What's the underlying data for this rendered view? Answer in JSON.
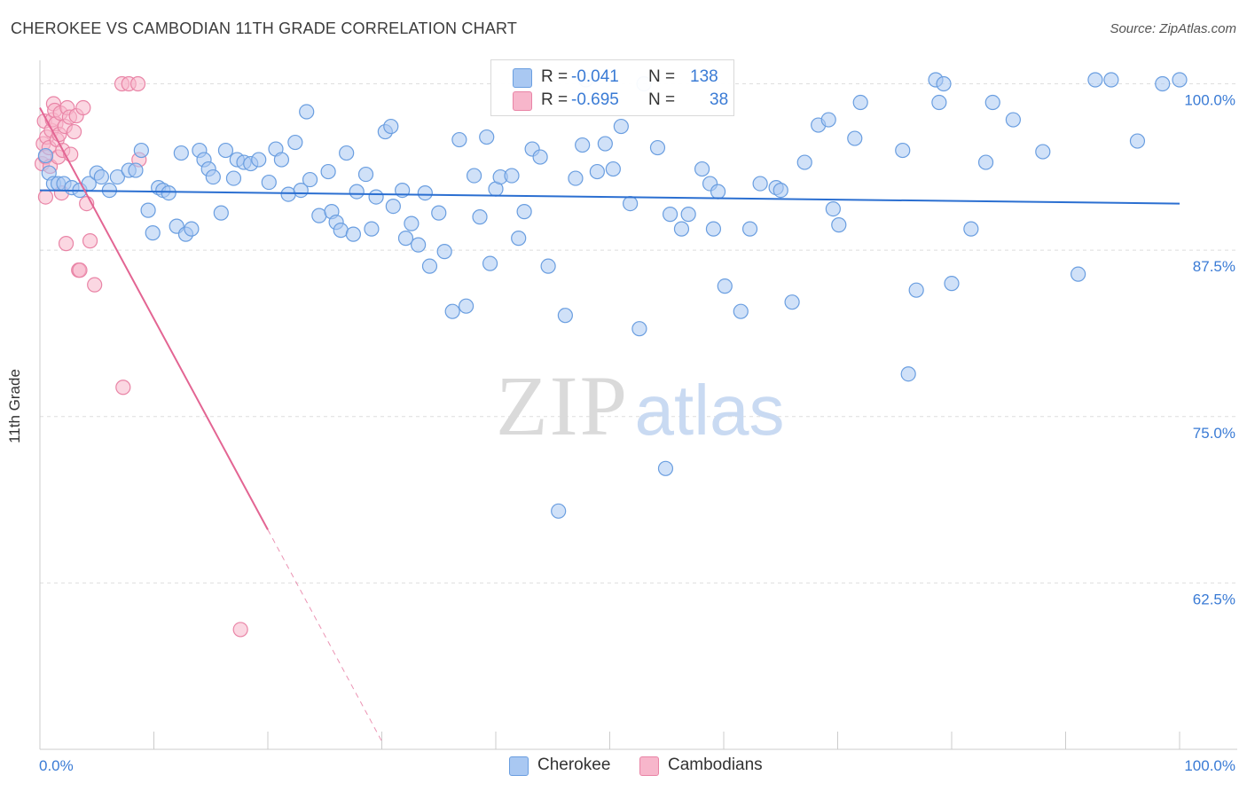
{
  "title": "CHEROKEE VS CAMBODIAN 11TH GRADE CORRELATION CHART",
  "source": "Source: ZipAtlas.com",
  "watermark": {
    "zip": "ZIP",
    "atlas": "atlas"
  },
  "legend": {
    "rows": [
      {
        "r_label": "R =",
        "r_value": "-0.041",
        "n_label": "N =",
        "n_value": "138",
        "color": "#a9c8f2",
        "border": "#6a9ee0"
      },
      {
        "r_label": "R =",
        "r_value": "-0.695",
        "n_label": "N =",
        "n_value": "38",
        "color": "#f7b6cb",
        "border": "#e984a6"
      }
    ]
  },
  "bottom_legend": [
    {
      "label": "Cherokee",
      "color": "#a9c8f2",
      "border": "#6a9ee0"
    },
    {
      "label": "Cambodians",
      "color": "#f7b6cb",
      "border": "#e984a6"
    }
  ],
  "chart_data": {
    "type": "scatter",
    "title": "CHEROKEE VS CAMBODIAN 11TH GRADE CORRELATION CHART",
    "xlabel": "",
    "ylabel": "11th Grade",
    "xlim": [
      0,
      100
    ],
    "ylim": [
      50,
      101.5
    ],
    "x_tick_labels": [
      "0.0%",
      "100.0%"
    ],
    "y_ticks": [
      62.5,
      75.0,
      87.5,
      100.0
    ],
    "y_tick_labels": [
      "62.5%",
      "75.0%",
      "87.5%",
      "100.0%"
    ],
    "grid": true,
    "legend_position": "top-center",
    "series": [
      {
        "name": "Cherokee",
        "color": "#6a9ee0",
        "fill": "#a9c8f2",
        "trend": {
          "x": [
            0,
            100
          ],
          "y": [
            92.0,
            91.0
          ],
          "color": "#2b6fd1"
        },
        "points": [
          [
            0.5,
            94.6
          ],
          [
            0.8,
            93.3
          ],
          [
            1.2,
            92.5
          ],
          [
            1.6,
            92.5
          ],
          [
            2.1,
            92.5
          ],
          [
            2.8,
            92.2
          ],
          [
            3.5,
            92.0
          ],
          [
            4.3,
            92.5
          ],
          [
            5.0,
            93.3
          ],
          [
            5.4,
            93.0
          ],
          [
            6.1,
            92.0
          ],
          [
            6.8,
            93.0
          ],
          [
            7.8,
            93.5
          ],
          [
            8.4,
            93.5
          ],
          [
            8.9,
            95.0
          ],
          [
            9.5,
            90.5
          ],
          [
            9.9,
            88.8
          ],
          [
            10.4,
            92.2
          ],
          [
            10.8,
            92.0
          ],
          [
            11.3,
            91.8
          ],
          [
            12.0,
            89.3
          ],
          [
            12.4,
            94.8
          ],
          [
            12.8,
            88.7
          ],
          [
            13.3,
            89.1
          ],
          [
            14.0,
            95.0
          ],
          [
            14.4,
            94.3
          ],
          [
            14.8,
            93.6
          ],
          [
            15.2,
            93.0
          ],
          [
            15.9,
            90.3
          ],
          [
            16.3,
            95.0
          ],
          [
            17.0,
            92.9
          ],
          [
            17.3,
            94.3
          ],
          [
            17.9,
            94.1
          ],
          [
            18.5,
            94.0
          ],
          [
            19.2,
            94.3
          ],
          [
            20.1,
            92.6
          ],
          [
            20.7,
            95.1
          ],
          [
            21.2,
            94.3
          ],
          [
            21.8,
            91.7
          ],
          [
            22.4,
            95.6
          ],
          [
            22.9,
            92.0
          ],
          [
            23.4,
            97.9
          ],
          [
            23.7,
            92.8
          ],
          [
            24.5,
            90.1
          ],
          [
            25.3,
            93.4
          ],
          [
            25.6,
            90.4
          ],
          [
            26.0,
            89.6
          ],
          [
            26.4,
            89.0
          ],
          [
            26.9,
            94.8
          ],
          [
            27.5,
            88.7
          ],
          [
            27.8,
            91.9
          ],
          [
            28.6,
            93.2
          ],
          [
            29.1,
            89.1
          ],
          [
            29.5,
            91.5
          ],
          [
            30.3,
            96.4
          ],
          [
            30.8,
            96.8
          ],
          [
            31.0,
            90.8
          ],
          [
            31.8,
            92.0
          ],
          [
            32.1,
            88.4
          ],
          [
            32.6,
            89.5
          ],
          [
            33.2,
            87.9
          ],
          [
            33.8,
            91.8
          ],
          [
            34.2,
            86.3
          ],
          [
            35.0,
            90.3
          ],
          [
            35.5,
            87.4
          ],
          [
            36.2,
            82.9
          ],
          [
            36.8,
            95.8
          ],
          [
            37.4,
            83.3
          ],
          [
            38.1,
            93.1
          ],
          [
            38.6,
            90.0
          ],
          [
            39.2,
            96.0
          ],
          [
            39.5,
            86.5
          ],
          [
            40.0,
            92.1
          ],
          [
            40.4,
            93.0
          ],
          [
            41.4,
            93.1
          ],
          [
            42.0,
            88.4
          ],
          [
            42.5,
            90.4
          ],
          [
            43.2,
            95.1
          ],
          [
            43.9,
            94.5
          ],
          [
            44.6,
            86.3
          ],
          [
            45.5,
            67.9
          ],
          [
            46.1,
            82.6
          ],
          [
            47.0,
            92.9
          ],
          [
            47.6,
            95.4
          ],
          [
            47.9,
            100.3
          ],
          [
            48.9,
            93.4
          ],
          [
            49.6,
            95.5
          ],
          [
            50.3,
            93.6
          ],
          [
            51.0,
            96.8
          ],
          [
            51.8,
            91.0
          ],
          [
            52.6,
            81.6
          ],
          [
            53.0,
            100.0
          ],
          [
            54.2,
            95.2
          ],
          [
            54.9,
            71.1
          ],
          [
            55.3,
            90.2
          ],
          [
            56.3,
            89.1
          ],
          [
            56.9,
            90.2
          ],
          [
            58.1,
            93.6
          ],
          [
            58.8,
            92.5
          ],
          [
            59.1,
            89.1
          ],
          [
            59.5,
            91.9
          ],
          [
            60.1,
            84.8
          ],
          [
            61.5,
            82.9
          ],
          [
            62.3,
            89.1
          ],
          [
            63.2,
            92.5
          ],
          [
            64.6,
            92.2
          ],
          [
            65.0,
            92.0
          ],
          [
            66.0,
            83.6
          ],
          [
            67.1,
            94.1
          ],
          [
            68.3,
            96.9
          ],
          [
            69.2,
            97.3
          ],
          [
            69.6,
            90.6
          ],
          [
            70.1,
            89.4
          ],
          [
            71.5,
            95.9
          ],
          [
            72.0,
            98.6
          ],
          [
            75.7,
            95.0
          ],
          [
            76.2,
            78.2
          ],
          [
            76.9,
            84.5
          ],
          [
            78.6,
            100.3
          ],
          [
            78.9,
            98.6
          ],
          [
            79.3,
            100.0
          ],
          [
            80.0,
            85.0
          ],
          [
            81.7,
            89.1
          ],
          [
            83.0,
            94.1
          ],
          [
            83.6,
            98.6
          ],
          [
            85.4,
            97.3
          ],
          [
            88.0,
            94.9
          ],
          [
            91.1,
            85.7
          ],
          [
            92.6,
            100.3
          ],
          [
            94.0,
            100.3
          ],
          [
            96.3,
            95.7
          ],
          [
            98.5,
            100.0
          ],
          [
            100.0,
            100.3
          ]
        ]
      },
      {
        "name": "Cambodians",
        "color": "#e984a6",
        "fill": "#f7b6cb",
        "trend": {
          "x": [
            0,
            20
          ],
          "y": [
            98.2,
            66.5
          ],
          "color": "#e36593",
          "extension": {
            "x": [
              20,
              30
            ],
            "y": [
              66.5,
              50.6
            ]
          }
        },
        "points": [
          [
            0.2,
            94.0
          ],
          [
            0.3,
            95.5
          ],
          [
            0.4,
            97.2
          ],
          [
            0.5,
            94.5
          ],
          [
            0.5,
            91.5
          ],
          [
            0.6,
            96.0
          ],
          [
            0.8,
            95.2
          ],
          [
            0.9,
            93.8
          ],
          [
            1.0,
            96.5
          ],
          [
            1.1,
            97.3
          ],
          [
            1.2,
            98.5
          ],
          [
            1.3,
            98.0
          ],
          [
            1.4,
            97.0
          ],
          [
            1.5,
            95.8
          ],
          [
            1.6,
            94.5
          ],
          [
            1.7,
            96.2
          ],
          [
            1.8,
            97.8
          ],
          [
            1.9,
            91.8
          ],
          [
            2.0,
            95.0
          ],
          [
            2.2,
            96.8
          ],
          [
            2.4,
            98.2
          ],
          [
            2.6,
            97.5
          ],
          [
            2.7,
            94.7
          ],
          [
            3.0,
            96.4
          ],
          [
            3.2,
            97.6
          ],
          [
            3.4,
            86.0
          ],
          [
            3.8,
            98.2
          ],
          [
            4.1,
            91.0
          ],
          [
            4.4,
            88.2
          ],
          [
            4.8,
            84.9
          ],
          [
            2.3,
            88.0
          ],
          [
            3.5,
            86.0
          ],
          [
            7.2,
            100.0
          ],
          [
            7.8,
            100.0
          ],
          [
            8.6,
            100.0
          ],
          [
            7.3,
            77.2
          ],
          [
            8.7,
            94.3
          ],
          [
            17.6,
            59.0
          ]
        ]
      }
    ]
  }
}
